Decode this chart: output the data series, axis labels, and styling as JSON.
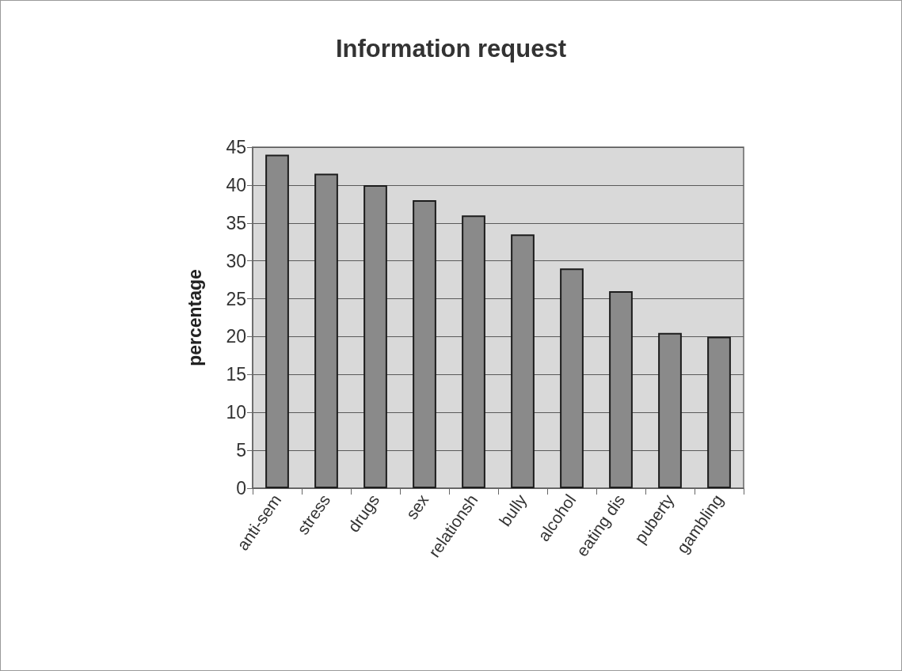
{
  "chart_data": {
    "type": "bar",
    "title": "Information request",
    "ylabel": "percentage",
    "categories": [
      "anti-sem",
      "stress",
      "drugs",
      "sex",
      "relationsh",
      "bully",
      "alcohol",
      "eating dis",
      "puberty",
      "gambling"
    ],
    "values": [
      44,
      41.5,
      40,
      38,
      36,
      33.5,
      29,
      26,
      20.5,
      20
    ],
    "color": "#8a8a8a",
    "ylim": [
      0,
      45
    ],
    "yticks": [
      0,
      5,
      10,
      15,
      20,
      25,
      30,
      35,
      40,
      45
    ],
    "grid": "y"
  }
}
